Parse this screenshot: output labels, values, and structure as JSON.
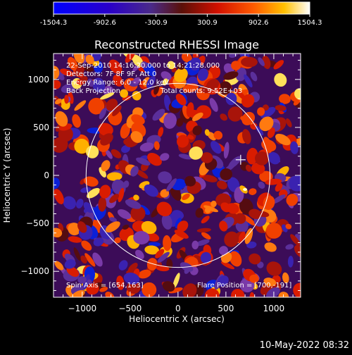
{
  "colorbar": {
    "ticks": [
      "-1504.3",
      "-902.6",
      "-300.9",
      "300.9",
      "902.6",
      "1504.3"
    ],
    "min": -1504.3,
    "max": 1504.3
  },
  "chart_data": {
    "type": "heatmap",
    "title": "Reconstructed RHESSI Image",
    "xlabel": "Heliocentric X (arcsec)",
    "ylabel": "Heliocentric Y (arcsec)",
    "xlim": [
      -1300,
      1280
    ],
    "ylim": [
      -1270,
      1270
    ],
    "xticks": [
      -1000,
      -500,
      0,
      500,
      1000
    ],
    "yticks": [
      -1000,
      -500,
      0,
      500,
      1000
    ],
    "xtick_labels": [
      "−1000",
      "−500",
      "0",
      "500",
      "1000"
    ],
    "ytick_labels": [
      "−1000",
      "−500",
      "0",
      "500",
      "1000"
    ],
    "value_range": [
      -1504.3,
      1504.3
    ],
    "colormap": "blue-purple-red-orange-yellow-white",
    "solar_limb_radius_arcsec": 960,
    "solar_limb_center": [
      0,
      0
    ],
    "flare_position": [
      700,
      -191
    ],
    "spin_axis": [
      654,
      163
    ],
    "annotations": [
      "22-Sep-2010 14:16:20.000 to 14:21:28.000",
      "Detectors: 7F 8F 9F, Att 0",
      "Energy Range: 6.0 - 12.0 keV",
      "Back Projection",
      "Total counts: 9.52E+03"
    ],
    "spin_axis_label": "Spin Axis = [654,163]",
    "flare_position_label": "Flare Position = [700,-191]"
  },
  "footer": {
    "timestamp": "10-May-2022 08:32"
  }
}
